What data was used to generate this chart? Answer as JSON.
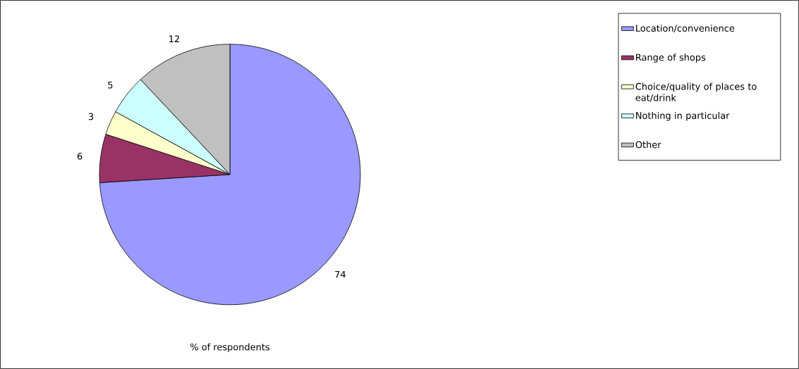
{
  "chart_data": {
    "type": "pie",
    "xlabel": "% of respondents",
    "categories": [
      "Location/convenience",
      "Range of shops",
      "Choice/quality of places to eat/drink",
      "Nothing in particular",
      "Other"
    ],
    "values": [
      74,
      6,
      3,
      5,
      12
    ],
    "colors": [
      "#9999ff",
      "#993366",
      "#ffffcc",
      "#ccffff",
      "#c0c0c0"
    ],
    "data_labels": true,
    "legend": "right"
  }
}
